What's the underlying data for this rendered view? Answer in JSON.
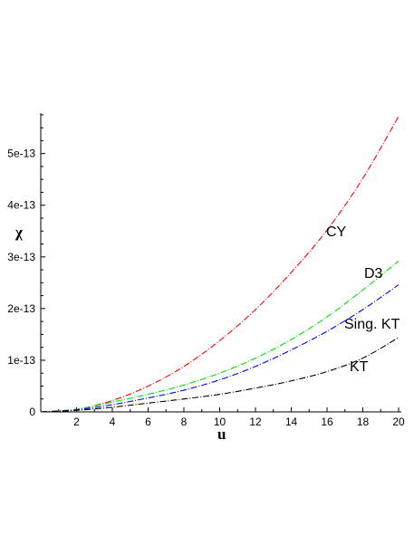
{
  "chart_data": {
    "type": "line",
    "title": "",
    "xlabel": "u",
    "ylabel": "χ",
    "xlim": [
      0,
      20
    ],
    "ylim": [
      0,
      5.8e-13
    ],
    "x_ticks": [
      2,
      4,
      6,
      8,
      10,
      12,
      14,
      16,
      18,
      20
    ],
    "x_tick_labels": [
      "2",
      "4",
      "6",
      "8",
      "10",
      "12",
      "14",
      "16",
      "18",
      "20"
    ],
    "y_ticks": [
      0,
      1e-13,
      2e-13,
      3e-13,
      4e-13,
      5e-13
    ],
    "y_tick_labels": [
      "0",
      "1e-13",
      "2e-13",
      "3e-13",
      "4e-13",
      "5e-13"
    ],
    "grid": false,
    "legend": "none (curves labelled directly)",
    "x": [
      0,
      2,
      4,
      6,
      8,
      10,
      12,
      14,
      16,
      18,
      20
    ],
    "series": [
      {
        "name": "CY",
        "color": "#ff0000",
        "values": [
          0,
          5e-15,
          2.2e-14,
          5e-14,
          8.8e-14,
          1.38e-13,
          1.98e-13,
          2.7e-13,
          3.52e-13,
          4.52e-13,
          5.72e-13
        ]
      },
      {
        "name": "D3",
        "color": "#00dd00",
        "values": [
          0,
          5e-15,
          1.9e-14,
          3.4e-14,
          5.2e-14,
          7.5e-14,
          1.04e-13,
          1.4e-13,
          1.84e-13,
          2.36e-13,
          2.92e-13
        ]
      },
      {
        "name": "Sing. KT",
        "color": "#0000ff",
        "values": [
          0,
          4e-15,
          1.4e-14,
          2.7e-14,
          4.2e-14,
          6.2e-14,
          8.8e-14,
          1.2e-13,
          1.56e-13,
          1.98e-13,
          2.46e-13
        ]
      },
      {
        "name": "KT",
        "color": "#000000",
        "values": [
          0,
          3e-15,
          9e-15,
          1.7e-14,
          2.5e-14,
          3.4e-14,
          4.6e-14,
          6e-14,
          7.8e-14,
          1.04e-13,
          1.44e-13
        ]
      }
    ]
  }
}
